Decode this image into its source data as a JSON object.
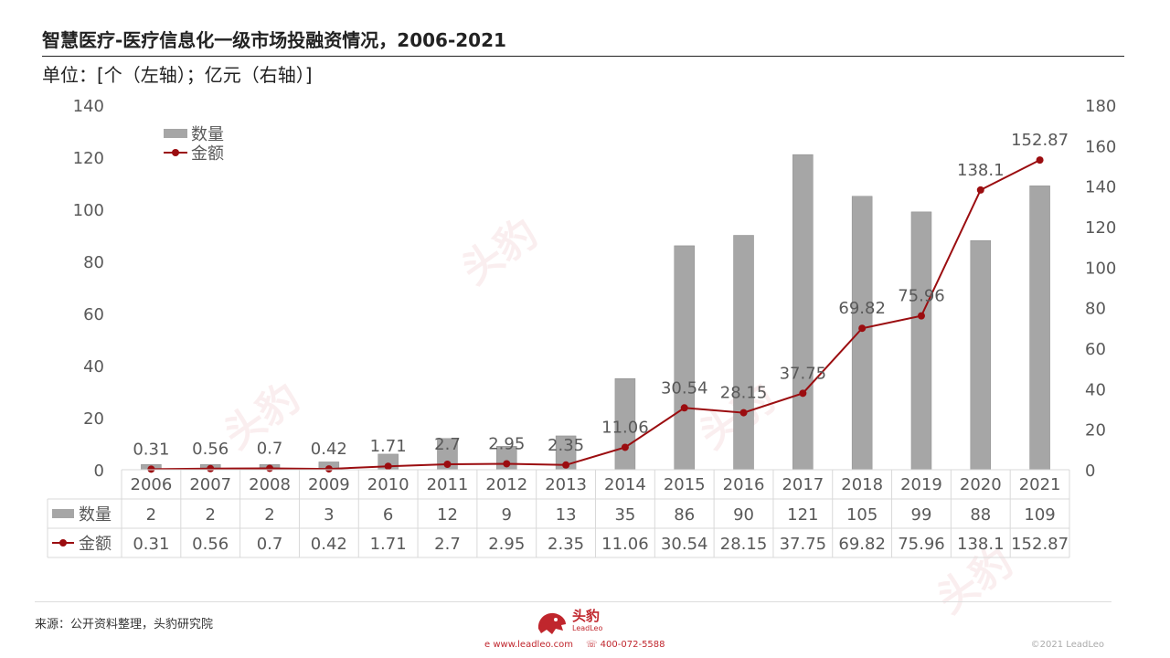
{
  "header": {
    "title": "智慧医疗-医疗信息化一级市场投融资情况，2006-2021",
    "subtitle": "单位：[个（左轴）；亿元（右轴）]"
  },
  "chart_data": {
    "type": "bar",
    "categories": [
      "2006",
      "2007",
      "2008",
      "2009",
      "2010",
      "2011",
      "2012",
      "2013",
      "2014",
      "2015",
      "2016",
      "2017",
      "2018",
      "2019",
      "2020",
      "2021"
    ],
    "series": [
      {
        "name": "数量",
        "type": "bar",
        "axis": "left",
        "color": "#a6a6a6",
        "values": [
          2,
          2,
          2,
          3,
          6,
          12,
          9,
          13,
          35,
          86,
          90,
          121,
          105,
          99,
          88,
          109
        ]
      },
      {
        "name": "金额",
        "type": "line",
        "axis": "right",
        "color": "#9b0d10",
        "values": [
          0.31,
          0.56,
          0.7,
          0.42,
          1.71,
          2.7,
          2.95,
          2.35,
          11.06,
          30.54,
          28.15,
          37.75,
          69.82,
          75.96,
          138.1,
          152.87
        ]
      }
    ],
    "data_labels": [
      "0.31",
      "0.56",
      "0.7",
      "0.42",
      "1.71",
      "2.7",
      "2.95",
      "2.35",
      "11.06",
      "30.54",
      "28.15",
      "37.75",
      "69.82",
      "75.96",
      "138.1",
      "152.87"
    ],
    "y_left": {
      "ticks": [
        "0",
        "20",
        "40",
        "60",
        "80",
        "100",
        "120",
        "140"
      ],
      "lim": [
        0,
        140
      ]
    },
    "y_right": {
      "ticks": [
        "0",
        "20",
        "40",
        "60",
        "80",
        "100",
        "120",
        "140",
        "160",
        "180"
      ],
      "lim": [
        0,
        180
      ]
    },
    "table": {
      "rows": [
        {
          "label": "数量",
          "cells": [
            "2",
            "2",
            "2",
            "3",
            "6",
            "12",
            "9",
            "13",
            "35",
            "86",
            "90",
            "121",
            "105",
            "99",
            "88",
            "109"
          ]
        },
        {
          "label": "金额",
          "cells": [
            "0.31",
            "0.56",
            "0.7",
            "0.42",
            "1.71",
            "2.7",
            "2.95",
            "2.35",
            "11.06",
            "30.54",
            "28.15",
            "37.75",
            "69.82",
            "75.96",
            "138.1",
            "152.87"
          ]
        }
      ]
    },
    "legend_position": "top-left",
    "grid": false
  },
  "footer": {
    "source": "来源：公开资料整理，头豹研究院",
    "brand": "头豹",
    "brand_sub": "LeadLeo",
    "website": "www.leadleo.com",
    "phone": "400-072-5588",
    "copyright": "©2021 LeadLeo",
    "watermark": "头豹"
  }
}
